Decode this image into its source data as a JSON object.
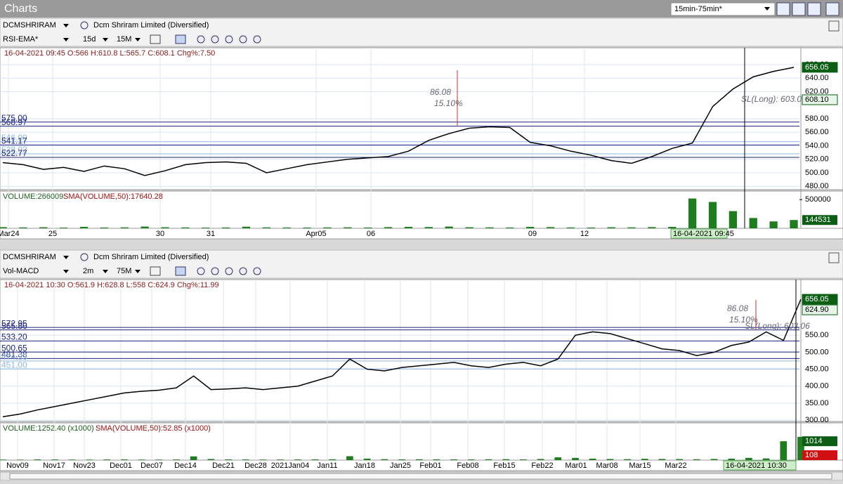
{
  "window": {
    "title": "Charts",
    "layout": "15min-75min*"
  },
  "panels": [
    {
      "symbol": "DCMSHRIRAM",
      "company": "Dcm Shriram Limited (Diversified)",
      "template": "RSI-EMA*",
      "range": "15d",
      "interval": "15M",
      "info": "16-04-2021 09:45 O:566 H:610.8 L:565.7 C:608.1 Chg%:7.50",
      "price": {
        "ylim": [
          475,
          685
        ],
        "yticks": [
          {
            "value": 480,
            "label": "480.00"
          },
          {
            "value": 500,
            "label": "500.00"
          },
          {
            "value": 520,
            "label": "520.00"
          },
          {
            "value": 540,
            "label": "540.00"
          },
          {
            "value": 560,
            "label": "560.00"
          },
          {
            "value": 580,
            "label": "580.00"
          },
          {
            "value": 620,
            "label": "620.00"
          },
          {
            "value": 640,
            "label": "640.00"
          },
          {
            "value": 660,
            "label": "660.00"
          }
        ],
        "color": "#000000",
        "closes": [
          515,
          512,
          505,
          508,
          502,
          510,
          506,
          496,
          503,
          512,
          515,
          516,
          514,
          500,
          506,
          512,
          516,
          520,
          522,
          524,
          532,
          548,
          558,
          566,
          568,
          567,
          545,
          540,
          532,
          526,
          518,
          514,
          524,
          536,
          544,
          598,
          624,
          642,
          650,
          656.05
        ],
        "levels": [
          {
            "value": 575,
            "label": "575.00",
            "color": "#1a237e"
          },
          {
            "value": 568.97,
            "label": "568.97",
            "color": "#1a237e"
          },
          {
            "value": 546,
            "label": "546.00",
            "color": "#8fb8e0"
          },
          {
            "value": 541.17,
            "label": "541.17",
            "color": "#1a237e"
          },
          {
            "value": 528.02,
            "label": "528.02",
            "color": "#8fb8e0"
          },
          {
            "value": 522.77,
            "label": "522.77",
            "color": "#1a237e"
          }
        ],
        "badges": [
          {
            "value": 656.05,
            "color": "#0b5e14"
          },
          {
            "value": 608.1,
            "label": "608.10",
            "color": "#e8f5e9"
          }
        ],
        "annotations": [
          "86.08",
          "15.10%",
          "SL(Long): 603.06"
        ]
      },
      "volume": {
        "title": "VOLUME:266009",
        "sma": "SMA(VOLUME,50):17640.28",
        "ylim": [
          0,
          650000
        ],
        "yticks": [
          500000
        ],
        "color": "#1e7d1e",
        "values": [
          20000,
          15000,
          18000,
          12000,
          25000,
          14000,
          16000,
          30000,
          18000,
          15000,
          12000,
          14000,
          28000,
          16000,
          14000,
          13000,
          15000,
          17000,
          14000,
          20000,
          25000,
          22000,
          30000,
          18000,
          16000,
          14000,
          25000,
          20000,
          15000,
          14000,
          18000,
          16000,
          20000,
          25000,
          520000,
          460000,
          300000,
          180000,
          120000,
          144531
        ],
        "badges": [
          {
            "value": 144531,
            "color": "#0b5e14"
          }
        ]
      },
      "dates": [
        "Mar24",
        "25",
        "30",
        "31",
        "Apr05",
        "06",
        "09",
        "12"
      ],
      "cursor_date": "16-04-2021 09:45"
    },
    {
      "symbol": "DCMSHRIRAM",
      "company": "Dcm Shriram Limited (Diversified)",
      "template": "Vol-MACD",
      "range": "2m",
      "interval": "75M",
      "info": "16-04-2021 10:30 O:561.9 H:628.8 L:558 C:624.9 Chg%:11.99",
      "price": {
        "ylim": [
          296,
          714
        ],
        "yticks": [
          {
            "value": 300,
            "label": "300.00"
          },
          {
            "value": 350,
            "label": "350.00"
          },
          {
            "value": 400,
            "label": "400.00"
          },
          {
            "value": 450,
            "label": "450.00"
          },
          {
            "value": 500,
            "label": "500.00"
          },
          {
            "value": 550,
            "label": "550.00"
          }
        ],
        "color": "#000000",
        "closes": [
          310,
          318,
          330,
          340,
          350,
          360,
          370,
          380,
          385,
          388,
          395,
          430,
          390,
          392,
          395,
          390,
          395,
          400,
          415,
          430,
          480,
          450,
          445,
          455,
          460,
          465,
          470,
          460,
          455,
          465,
          470,
          460,
          480,
          550,
          560,
          555,
          540,
          525,
          510,
          505,
          490,
          500,
          520,
          530,
          560,
          535,
          656.05
        ],
        "levels": [
          {
            "value": 572.95,
            "label": "572.95",
            "color": "#1a237e"
          },
          {
            "value": 565.8,
            "label": "565.80",
            "color": "#1a237e"
          },
          {
            "value": 533.2,
            "label": "533.20",
            "color": "#1a237e"
          },
          {
            "value": 500.65,
            "label": "500.65",
            "color": "#1a237e"
          },
          {
            "value": 481.38,
            "label": "481.38",
            "color": "#1a237e"
          },
          {
            "value": 474.33,
            "label": "474.33",
            "color": "#8fb8e0"
          },
          {
            "value": 451,
            "label": "451.00",
            "color": "#8fb8e0"
          }
        ],
        "badges": [
          {
            "value": 656.05,
            "color": "#0b5e14"
          },
          {
            "value": 624.9,
            "label": "624.90",
            "color": "#e8f5e9"
          }
        ],
        "annotations": [
          "86.08",
          "15.10%",
          "SL(Long): 603.06"
        ]
      },
      "volume": {
        "title": "VOLUME:1252.40 (x1000)",
        "sma": "SMA(VOLUME,50):52.85 (x1000)",
        "ylim": [
          0,
          2000
        ],
        "yticks": [],
        "color": "#1e7d1e",
        "values": [
          30,
          25,
          40,
          35,
          30,
          28,
          35,
          40,
          30,
          28,
          35,
          200,
          60,
          40,
          35,
          30,
          32,
          35,
          40,
          45,
          210,
          80,
          50,
          40,
          45,
          42,
          40,
          38,
          45,
          50,
          40,
          60,
          150,
          120,
          80,
          60,
          50,
          70,
          60,
          55,
          45,
          60,
          80,
          120,
          90,
          1014,
          1252.4
        ],
        "badges": [
          {
            "value": 1014,
            "color": "#0b5e14"
          },
          {
            "value": 108,
            "color": "#d01010"
          }
        ]
      },
      "dates": [
        "Nov09",
        "Nov17",
        "Nov23",
        "Dec01",
        "Dec07",
        "Dec14",
        "Dec21",
        "Dec28",
        "2021Jan04",
        "Jan11",
        "Jan18",
        "Jan25",
        "Feb01",
        "Feb08",
        "Feb15",
        "Feb22",
        "Mar01",
        "Mar08",
        "Mar15",
        "Mar22"
      ],
      "cursor_date": "16-04-2021 10:30"
    }
  ]
}
